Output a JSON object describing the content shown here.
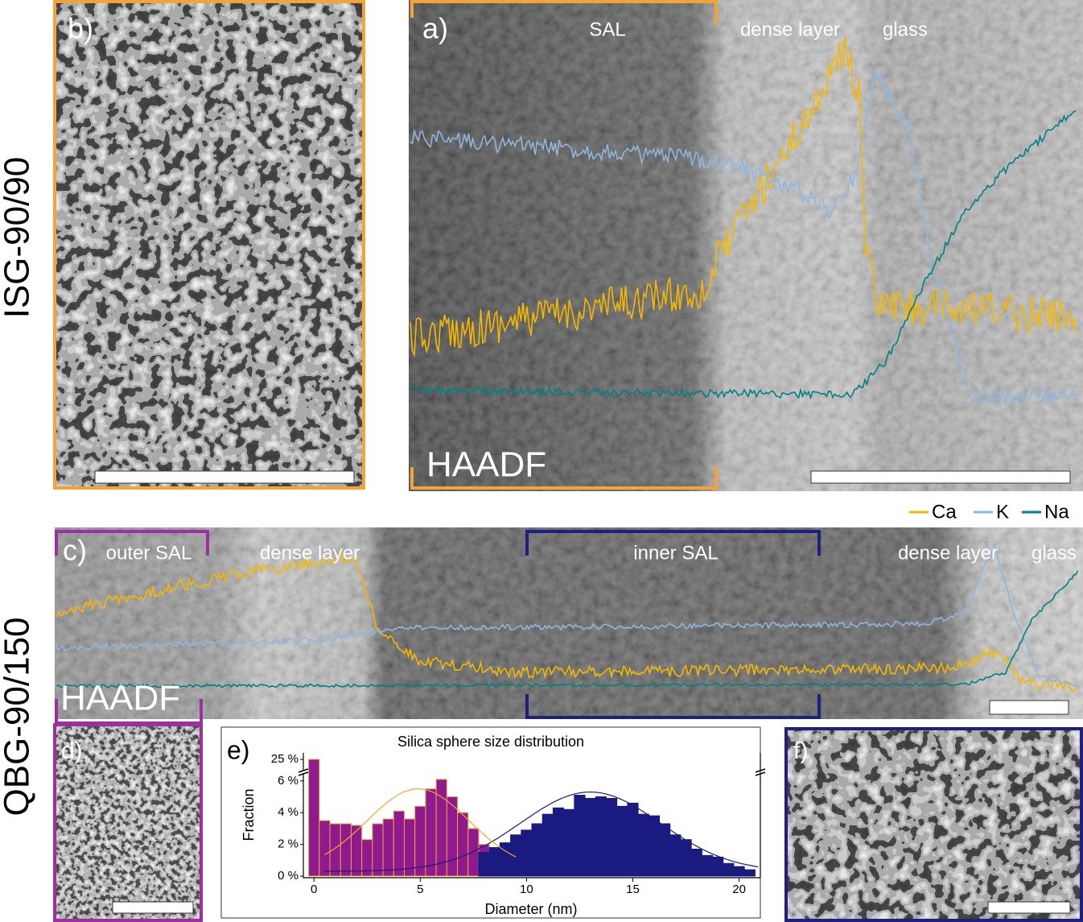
{
  "side_labels": [
    "ISG-90/90",
    "QBG-90/150"
  ],
  "panel_a": {
    "label": "a)",
    "regions": [
      "SAL",
      "dense layer",
      "glass"
    ],
    "detector": "HAADF"
  },
  "panel_b": {
    "label": "b)"
  },
  "legend": [
    {
      "name": "Ca",
      "color": "#f5b800"
    },
    {
      "name": "K",
      "color": "#8fb6dc"
    },
    {
      "name": "Na",
      "color": "#008080"
    }
  ],
  "panel_c": {
    "label": "c)",
    "regions": [
      "outer SAL",
      "dense layer",
      "inner SAL",
      "dense layer",
      "glass"
    ],
    "detector": "HAADF"
  },
  "panel_d": {
    "label": "d)"
  },
  "panel_e": {
    "label": "e)"
  },
  "panel_f": {
    "label": "f)"
  },
  "chart_data": {
    "type": "histogram",
    "title": "Silica sphere size distribution",
    "xlabel": "Diameter (nm)",
    "ylabel": "Fraction",
    "bins": [
      -0.25,
      0.25,
      0.75,
      1.25,
      1.75,
      2.25,
      2.75,
      3.25,
      3.75,
      4.25,
      4.75,
      5.25,
      5.75,
      6.25,
      6.75,
      7.25,
      7.75,
      8.25,
      8.75,
      9.25,
      9.75,
      10.25,
      10.75,
      11.25,
      11.75,
      12.25,
      12.75,
      13.25,
      13.75,
      14.25,
      14.75,
      15.25,
      15.75,
      16.25,
      16.75,
      17.25,
      17.75,
      18.25,
      18.75,
      19.25,
      19.75,
      20.25,
      20.75
    ],
    "series": [
      {
        "color": "#8e1a8e",
        "edgecolor": "#f4a23a",
        "values": [
          25,
          3.5,
          3.3,
          3.3,
          3.2,
          2.3,
          3.3,
          3.6,
          4.1,
          3.6,
          4.4,
          5.5,
          6.1,
          5.0,
          4.0,
          3.0,
          2.0,
          1.8,
          1.2,
          0.6,
          null,
          null,
          null,
          null,
          null,
          null,
          null,
          null,
          null,
          null,
          null,
          null,
          null,
          null,
          null,
          null,
          null,
          null,
          null,
          null,
          null,
          null
        ]
      },
      {
        "color": "#1a1a80",
        "edgecolor": "#1a1a80",
        "values": [
          null,
          null,
          null,
          null,
          null,
          null,
          null,
          null,
          null,
          null,
          null,
          null,
          null,
          null,
          null,
          null,
          1.5,
          1.8,
          2.1,
          2.6,
          2.9,
          3.3,
          3.9,
          4.3,
          4.2,
          5.1,
          4.9,
          5.0,
          4.9,
          4.4,
          4.6,
          3.9,
          3.8,
          3.3,
          2.6,
          2.3,
          1.7,
          1.3,
          1.2,
          0.8,
          0.6,
          0.4
        ]
      }
    ],
    "xlim": [
      -0.5,
      21
    ],
    "xticks": [
      0,
      5,
      10,
      15,
      20
    ],
    "ylim": [
      0,
      26
    ],
    "axis_break": [
      6.6,
      24
    ],
    "yticks": [
      {
        "value": 0,
        "label": "0 %"
      },
      {
        "value": 2,
        "label": "2 %"
      },
      {
        "value": 4,
        "label": "4 %"
      },
      {
        "value": 6,
        "label": "6 %"
      },
      {
        "value": 25,
        "label": "25 %"
      }
    ]
  }
}
